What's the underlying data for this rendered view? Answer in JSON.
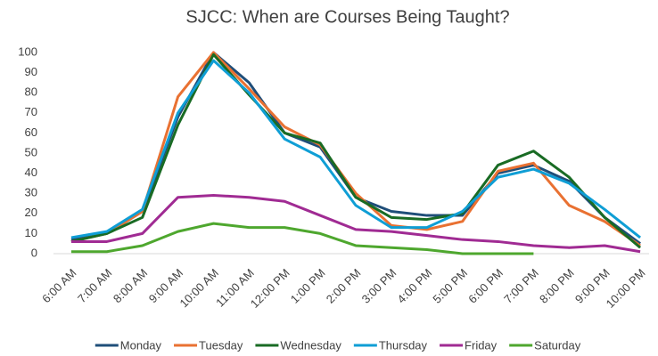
{
  "chart_data": {
    "type": "line",
    "title": "SJCC: When are Courses Being Taught?",
    "categories": [
      "6:00 AM",
      "7:00 AM",
      "8:00 AM",
      "9:00 AM",
      "10:00 AM",
      "11:00 AM",
      "12:00 PM",
      "1:00 PM",
      "2:00 PM",
      "3:00 PM",
      "4:00 PM",
      "5:00 PM",
      "6:00 PM",
      "7:00 PM",
      "8:00 PM",
      "9:00 PM",
      "10:00 PM"
    ],
    "series": [
      {
        "name": "Monday",
        "color": "#1f4e79",
        "values": [
          7,
          10,
          21,
          68,
          100,
          85,
          60,
          53,
          28,
          21,
          19,
          19,
          40,
          44,
          36,
          18,
          5
        ]
      },
      {
        "name": "Tuesday",
        "color": "#e97132",
        "values": [
          6,
          10,
          21,
          78,
          100,
          82,
          63,
          54,
          30,
          14,
          12,
          16,
          41,
          45,
          24,
          16,
          4
        ]
      },
      {
        "name": "Wednesday",
        "color": "#196b24",
        "values": [
          6,
          10,
          18,
          64,
          99,
          79,
          60,
          55,
          28,
          18,
          17,
          20,
          44,
          51,
          38,
          18,
          3
        ]
      },
      {
        "name": "Thursday",
        "color": "#0f9ed5",
        "values": [
          8,
          11,
          22,
          70,
          96,
          80,
          57,
          48,
          24,
          13,
          13,
          21,
          38,
          42,
          35,
          22,
          8
        ]
      },
      {
        "name": "Friday",
        "color": "#a02b93",
        "values": [
          6,
          6,
          10,
          28,
          29,
          28,
          26,
          19,
          12,
          11,
          9,
          7,
          6,
          4,
          3,
          4,
          1
        ]
      },
      {
        "name": "Saturday",
        "color": "#4ea72e",
        "values": [
          1,
          1,
          4,
          11,
          15,
          13,
          13,
          10,
          4,
          3,
          2,
          0,
          0,
          0,
          null,
          null,
          null
        ]
      }
    ],
    "ylim": [
      0,
      100
    ],
    "yticks": [
      0,
      10,
      20,
      30,
      40,
      50,
      60,
      70,
      80,
      90,
      100
    ],
    "grid": false,
    "legend": "bottom"
  }
}
